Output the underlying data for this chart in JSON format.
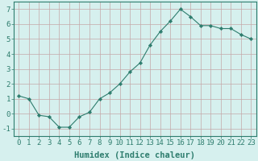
{
  "x": [
    0,
    1,
    2,
    3,
    4,
    5,
    6,
    7,
    8,
    9,
    10,
    11,
    12,
    13,
    14,
    15,
    16,
    17,
    18,
    19,
    20,
    21,
    22,
    23
  ],
  "y": [
    1.2,
    1.0,
    -0.1,
    -0.2,
    -0.9,
    -0.9,
    -0.2,
    0.1,
    1.0,
    1.4,
    2.0,
    2.8,
    3.4,
    4.6,
    5.5,
    6.2,
    7.0,
    6.5,
    5.9,
    5.9,
    5.7,
    5.7,
    5.3,
    5.0
  ],
  "line_color": "#2e7d6e",
  "marker": "D",
  "marker_size": 2.2,
  "bg_color": "#d6f0ee",
  "grid_color": "#c4a8a8",
  "xlabel": "Humidex (Indice chaleur)",
  "ylim": [
    -1.5,
    7.5
  ],
  "xlim": [
    -0.5,
    23.5
  ],
  "yticks": [
    -1,
    0,
    1,
    2,
    3,
    4,
    5,
    6,
    7
  ],
  "xticks": [
    0,
    1,
    2,
    3,
    4,
    5,
    6,
    7,
    8,
    9,
    10,
    11,
    12,
    13,
    14,
    15,
    16,
    17,
    18,
    19,
    20,
    21,
    22,
    23
  ],
  "xlabel_fontsize": 7.5,
  "tick_fontsize": 6.5
}
